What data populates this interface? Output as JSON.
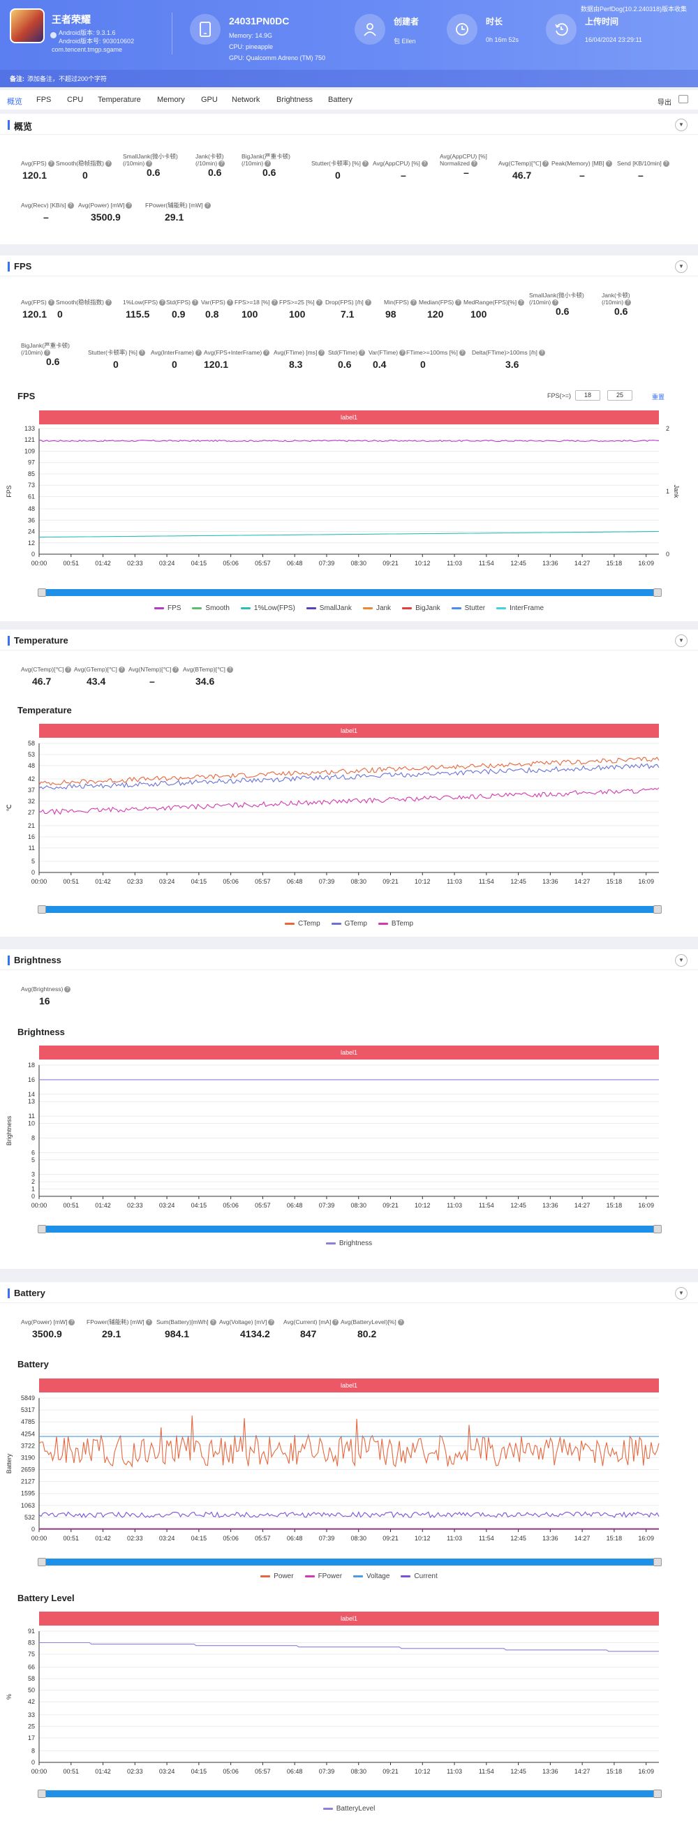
{
  "header": {
    "app_name": "王者荣耀",
    "android_version": "Android版本: 9.3.1.6",
    "android_code": "Android版本号: 903010602",
    "package": "com.tencent.tmgp.sgame",
    "device_name": "24031PN0DC",
    "memory": "Memory: 14.9G",
    "cpu": "CPU: pineapple",
    "gpu": "GPU: Qualcomm Adreno (TM) 750",
    "creator_title": "创建者",
    "creator": "包 Ellen",
    "duration_title": "时长",
    "duration": "0h 16m 52s",
    "upload_title": "上传时间",
    "upload_time": "16/04/2024 23:29:11",
    "perfdog": "数据由PerfDog(10.2.240318)版本收集",
    "note_badge": "备注:",
    "note": "添加备注，不超过200个字符"
  },
  "tabs": [
    "概览",
    "FPS",
    "CPU",
    "Temperature",
    "Memory",
    "GPU",
    "Network",
    "Brightness",
    "Battery"
  ],
  "export_label": "导出",
  "overview": {
    "title": "概览",
    "metrics": [
      {
        "label": "Avg(FPS)",
        "value": "120.1"
      },
      {
        "label": "Smooth(稳帧指数)",
        "value": "0"
      },
      {
        "label": "SmallJank(微小卡顿)\n(/10min)",
        "value": "0.6"
      },
      {
        "label": "Jank(卡顿)\n(/10min)",
        "value": "0.6"
      },
      {
        "label": "BigJank(严重卡顿)\n(/10min)",
        "value": "0.6"
      },
      {
        "label": "Stutter(卡顿率) [%]",
        "value": "0"
      },
      {
        "label": "Avg(AppCPU) [%]",
        "value": "–"
      },
      {
        "label": "Avg(AppCPU) [%]\nNormalized",
        "value": "–"
      },
      {
        "label": "Avg(CTemp)[℃]",
        "value": "46.7"
      },
      {
        "label": "Peak(Memory) [MB]",
        "value": "–"
      },
      {
        "label": "Send [KB/10min]",
        "value": "–"
      },
      {
        "label": "Avg(Recv) [KB/s]",
        "value": "–"
      },
      {
        "label": "Avg(Power) [mW]",
        "value": "3500.9"
      },
      {
        "label": "FPower(辅能耗) [mW]",
        "value": "29.1"
      }
    ]
  },
  "fps": {
    "title": "FPS",
    "metrics": [
      {
        "label": "Avg(FPS)",
        "value": "120.1"
      },
      {
        "label": "Smooth(稳帧指数)",
        "value": "0"
      },
      {
        "label": "1%Low(FPS)",
        "value": "115.5"
      },
      {
        "label": "Std(FPS)",
        "value": "0.9"
      },
      {
        "label": "Var(FPS)",
        "value": "0.8"
      },
      {
        "label": "FPS>=18 [%]",
        "value": "100"
      },
      {
        "label": "FPS>=25 [%]",
        "value": "100"
      },
      {
        "label": "Drop(FPS) [/h]",
        "value": "7.1"
      },
      {
        "label": "Min(FPS)",
        "value": "98"
      },
      {
        "label": "Median(FPS)",
        "value": "120"
      },
      {
        "label": "MedRange(FPS)[%]",
        "value": "100"
      },
      {
        "label": "SmallJank(微小卡顿)\n(/10min)",
        "value": "0.6"
      },
      {
        "label": "Jank(卡顿)\n(/10min)",
        "value": "0.6"
      },
      {
        "label": "BigJank(严重卡顿)\n(/10min)",
        "value": "0.6"
      },
      {
        "label": "Stutter(卡顿率) [%]",
        "value": "0"
      },
      {
        "label": "Avg(InterFrame)",
        "value": "0"
      },
      {
        "label": "Avg(FPS+InterFrame)",
        "value": "120.1"
      },
      {
        "label": "Avg(FTime) [ms]",
        "value": "8.3"
      },
      {
        "label": "Std(FTime)",
        "value": "0.6"
      },
      {
        "label": "Var(FTime)",
        "value": "0.4"
      },
      {
        "label": "FTime>=100ms [%]",
        "value": "0"
      },
      {
        "label": "Delta(FTime)>100ms [/h]",
        "value": "3.6"
      }
    ],
    "chart_title": "FPS",
    "fps_range_label": "FPS(>=)",
    "fps_a": "18",
    "fps_b": "25",
    "reset_label": "重置"
  },
  "temperature": {
    "title": "Temperature",
    "metrics": [
      {
        "label": "Avg(CTemp)[℃]",
        "value": "46.7"
      },
      {
        "label": "Avg(GTemp)[℃]",
        "value": "43.4"
      },
      {
        "label": "Avg(NTemp)[℃]",
        "value": "–"
      },
      {
        "label": "Avg(BTemp)[℃]",
        "value": "34.6"
      }
    ],
    "chart_title": "Temperature"
  },
  "brightness": {
    "title": "Brightness",
    "metrics": [
      {
        "label": "Avg(Brightness)",
        "value": "16"
      }
    ],
    "chart_title": "Brightness"
  },
  "battery": {
    "title": "Battery",
    "metrics": [
      {
        "label": "Avg(Power) [mW]",
        "value": "3500.9"
      },
      {
        "label": "FPower(辅能耗) [mW]",
        "value": "29.1"
      },
      {
        "label": "Sum(Battery)[mWh]",
        "value": "984.1"
      },
      {
        "label": "Avg(Voltage) [mV]",
        "value": "4134.2"
      },
      {
        "label": "Avg(Current) [mA]",
        "value": "847"
      },
      {
        "label": "Avg(BatteryLevel)[%]",
        "value": "80.2"
      }
    ],
    "chart_title": "Battery",
    "level_title": "Battery Level"
  },
  "band_label": "label1",
  "colors": {
    "accent": "#3a6ff7",
    "band": "#ec5866",
    "slider": "#1e90e8"
  },
  "chart_data": [
    {
      "id": "fps",
      "type": "line",
      "title": "FPS",
      "ylabel": "FPS",
      "y2label": "Jank",
      "x": [
        "00:00",
        "00:51",
        "01:42",
        "02:33",
        "03:24",
        "04:15",
        "05:06",
        "05:57",
        "06:48",
        "07:39",
        "08:30",
        "09:21",
        "10:12",
        "11:03",
        "11:54",
        "12:45",
        "13:36",
        "14:27",
        "15:18",
        "16:09"
      ],
      "yticks": [
        0,
        12,
        24,
        36,
        48,
        61,
        73,
        85,
        97,
        109,
        121,
        133
      ],
      "ylim": [
        0,
        133
      ],
      "y2ticks": [
        0,
        1,
        2
      ],
      "y2lim": [
        0,
        2
      ],
      "series": [
        {
          "name": "FPS",
          "color": "#b53bc7",
          "approx": 120
        },
        {
          "name": "Smooth",
          "color": "#5bbf6a"
        },
        {
          "name": "1%Low(FPS)",
          "color": "#27c0b6",
          "start": 18,
          "end": 24
        },
        {
          "name": "SmallJank",
          "color": "#5a3fc0"
        },
        {
          "name": "Jank",
          "color": "#f0862d"
        },
        {
          "name": "BigJank",
          "color": "#e83b3b"
        },
        {
          "name": "Stutter",
          "color": "#4a8cf0"
        },
        {
          "name": "InterFrame",
          "color": "#3fd3e0"
        }
      ]
    },
    {
      "id": "temp",
      "type": "line",
      "title": "Temperature",
      "ylabel": "℃",
      "x": [
        "00:00",
        "00:51",
        "01:42",
        "02:33",
        "03:24",
        "04:15",
        "05:06",
        "05:57",
        "06:48",
        "07:39",
        "08:30",
        "09:21",
        "10:12",
        "11:03",
        "11:54",
        "12:45",
        "13:36",
        "14:27",
        "15:18",
        "16:09"
      ],
      "yticks": [
        0,
        5,
        11,
        16,
        21,
        27,
        32,
        37,
        42,
        48,
        53,
        58
      ],
      "ylim": [
        0,
        58
      ],
      "series": [
        {
          "name": "CTemp",
          "color": "#e8663c",
          "start": 40,
          "end": 51
        },
        {
          "name": "GTemp",
          "color": "#6a72d8",
          "start": 38,
          "end": 48
        },
        {
          "name": "BTemp",
          "color": "#d23ab0",
          "start": 27,
          "end": 37
        }
      ]
    },
    {
      "id": "bright",
      "type": "line",
      "title": "Brightness",
      "ylabel": "Brightness",
      "x": [
        "00:00",
        "00:51",
        "01:42",
        "02:33",
        "03:24",
        "04:15",
        "05:06",
        "05:57",
        "06:48",
        "07:39",
        "08:30",
        "09:21",
        "10:12",
        "11:03",
        "11:54",
        "12:45",
        "13:36",
        "14:27",
        "15:18",
        "16:09"
      ],
      "yticks": [
        0,
        1,
        2,
        3,
        5,
        6,
        8,
        10,
        11,
        13,
        14,
        16,
        18
      ],
      "ylim": [
        0,
        18
      ],
      "series": [
        {
          "name": "Brightness",
          "color": "#8b7fe0",
          "value": 16
        }
      ]
    },
    {
      "id": "battery",
      "type": "line",
      "title": "Battery",
      "ylabel": "Battery",
      "x": [
        "00:00",
        "00:51",
        "01:42",
        "02:33",
        "03:24",
        "04:15",
        "05:06",
        "05:57",
        "06:48",
        "07:39",
        "08:30",
        "09:21",
        "10:12",
        "11:03",
        "11:54",
        "12:45",
        "13:36",
        "14:27",
        "15:18",
        "16:09"
      ],
      "yticks": [
        0,
        532,
        1063,
        1595,
        2127,
        2659,
        3190,
        3722,
        4254,
        4785,
        5317,
        5849
      ],
      "ylim": [
        0,
        5849
      ],
      "series": [
        {
          "name": "Power",
          "color": "#e8663c",
          "approx": 3500
        },
        {
          "name": "FPower",
          "color": "#d23ab0",
          "approx": 29
        },
        {
          "name": "Voltage",
          "color": "#4a9be0",
          "approx": 4134
        },
        {
          "name": "Current",
          "color": "#7a52d8",
          "approx": 847
        }
      ]
    },
    {
      "id": "level",
      "type": "line",
      "title": "Battery Level",
      "ylabel": "%",
      "x": [
        "00:00",
        "00:51",
        "01:42",
        "02:33",
        "03:24",
        "04:15",
        "05:06",
        "05:57",
        "06:48",
        "07:39",
        "08:30",
        "09:21",
        "10:12",
        "11:03",
        "11:54",
        "12:45",
        "13:36",
        "14:27",
        "15:18",
        "16:09"
      ],
      "yticks": [
        0,
        8,
        17,
        25,
        33,
        42,
        50,
        58,
        66,
        75,
        83,
        91
      ],
      "ylim": [
        0,
        91
      ],
      "series": [
        {
          "name": "BatteryLevel",
          "color": "#8b7fe0",
          "start": 83,
          "end": 77
        }
      ]
    }
  ]
}
